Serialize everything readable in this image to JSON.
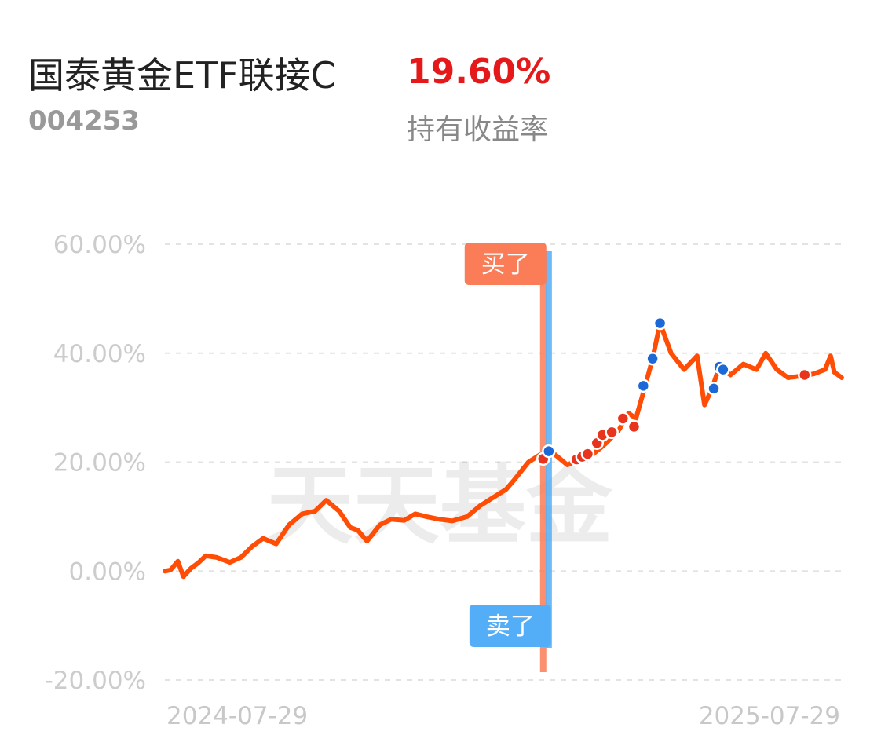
{
  "fund": {
    "name": "国泰黄金ETF联接C",
    "code": "004253",
    "return_value": "19.60%",
    "return_label": "持有收益率"
  },
  "chart_data": {
    "type": "line",
    "watermark": "天天基金",
    "yticks": [
      "60.00%",
      "40.00%",
      "20.00%",
      "0.00%",
      "-20.00%"
    ],
    "ytick_values": [
      60,
      40,
      20,
      0,
      -20
    ],
    "xtick_labels": [
      "2024-07-29",
      "2025-07-29"
    ],
    "x_range": [
      "2024-07-29",
      "2025-07-29"
    ],
    "ylim": [
      -20,
      60
    ],
    "grid": true,
    "colors": {
      "line": "#ff4d06",
      "buy": "#e8331d",
      "sell": "#1c68d6",
      "buy_marker": "#fa7d58",
      "sell_marker": "#54aef7",
      "grid": "#e3e3e3"
    },
    "series": [
      {
        "values": [
          [
            "2024-07-29",
            0.0
          ],
          [
            "2024-08-01",
            0.2
          ],
          [
            "2024-08-05",
            1.8
          ],
          [
            "2024-08-08",
            -1.0
          ],
          [
            "2024-08-12",
            0.5
          ],
          [
            "2024-08-16",
            1.5
          ],
          [
            "2024-08-20",
            2.8
          ],
          [
            "2024-08-26",
            2.5
          ],
          [
            "2024-09-02",
            1.6
          ],
          [
            "2024-09-08",
            2.5
          ],
          [
            "2024-09-14",
            4.5
          ],
          [
            "2024-09-20",
            6.0
          ],
          [
            "2024-09-27",
            5.0
          ],
          [
            "2024-10-04",
            8.5
          ],
          [
            "2024-10-11",
            10.5
          ],
          [
            "2024-10-18",
            11.0
          ],
          [
            "2024-10-24",
            13.0
          ],
          [
            "2024-10-31",
            11.0
          ],
          [
            "2024-11-06",
            8.0
          ],
          [
            "2024-11-10",
            7.5
          ],
          [
            "2024-11-15",
            5.5
          ],
          [
            "2024-11-22",
            8.5
          ],
          [
            "2024-11-28",
            9.5
          ],
          [
            "2024-12-05",
            9.3
          ],
          [
            "2024-12-11",
            10.5
          ],
          [
            "2024-12-17",
            10.0
          ],
          [
            "2024-12-24",
            9.5
          ],
          [
            "2024-12-31",
            9.2
          ],
          [
            "2025-01-08",
            10.0
          ],
          [
            "2025-01-15",
            12.0
          ],
          [
            "2025-01-22",
            13.5
          ],
          [
            "2025-01-29",
            15.0
          ],
          [
            "2025-02-03",
            17.0
          ],
          [
            "2025-02-10",
            20.0
          ],
          [
            "2025-02-17",
            21.5
          ],
          [
            "2025-02-24",
            21.5
          ],
          [
            "2025-03-03",
            19.5
          ],
          [
            "2025-03-10",
            20.5
          ],
          [
            "2025-03-17",
            21.5
          ],
          [
            "2025-03-24",
            23.5
          ],
          [
            "2025-03-31",
            26.0
          ],
          [
            "2025-04-05",
            29.0
          ],
          [
            "2025-04-09",
            28.0
          ],
          [
            "2025-04-14",
            34.0
          ],
          [
            "2025-04-18",
            39.0
          ],
          [
            "2025-04-22",
            45.5
          ],
          [
            "2025-04-28",
            40.0
          ],
          [
            "2025-05-05",
            37.0
          ],
          [
            "2025-05-12",
            39.5
          ],
          [
            "2025-05-16",
            30.5
          ],
          [
            "2025-05-20",
            33.5
          ],
          [
            "2025-05-24",
            37.5
          ],
          [
            "2025-05-30",
            36.0
          ],
          [
            "2025-06-06",
            38.0
          ],
          [
            "2025-06-13",
            37.0
          ],
          [
            "2025-06-18",
            40.0
          ],
          [
            "2025-06-24",
            37.0
          ],
          [
            "2025-06-30",
            35.5
          ],
          [
            "2025-07-07",
            35.8
          ],
          [
            "2025-07-14",
            36.2
          ],
          [
            "2025-07-20",
            37.0
          ],
          [
            "2025-07-23",
            39.5
          ],
          [
            "2025-07-25",
            36.5
          ],
          [
            "2025-07-29",
            35.5
          ]
        ]
      }
    ],
    "buy_points": [
      [
        "2025-02-18",
        20.6
      ],
      [
        "2025-03-08",
        20.5
      ],
      [
        "2025-03-11",
        21.0
      ],
      [
        "2025-03-14",
        21.5
      ],
      [
        "2025-03-19",
        23.5
      ],
      [
        "2025-03-22",
        25.0
      ],
      [
        "2025-03-27",
        25.5
      ],
      [
        "2025-04-02",
        28.0
      ],
      [
        "2025-04-08",
        26.5
      ],
      [
        "2025-07-09",
        36.0
      ]
    ],
    "sell_points": [
      [
        "2025-02-21",
        22.0
      ],
      [
        "2025-04-13",
        34.0
      ],
      [
        "2025-04-18",
        39.0
      ],
      [
        "2025-04-22",
        45.5
      ],
      [
        "2025-05-21",
        33.5
      ],
      [
        "2025-05-24",
        37.5
      ],
      [
        "2025-05-26",
        37.0
      ]
    ],
    "markers": {
      "buy_label": "买了",
      "sell_label": "卖了",
      "buy_date": "2025-02-18",
      "sell_date": "2025-02-21"
    }
  }
}
